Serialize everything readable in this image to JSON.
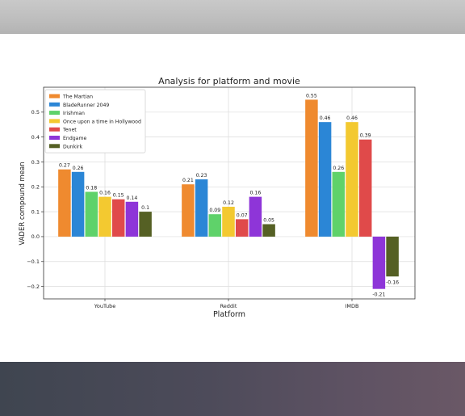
{
  "colors": {
    "The Martian": "#ef8a2f",
    "BladeRunner 2049": "#2b86d6",
    "Irishman": "#5fd26a",
    "Once upon a time in Hollywood": "#f3c930",
    "Tenet": "#e04a4a",
    "Endgame": "#8e35d8",
    "Dunkirk": "#556024"
  },
  "chart_data": {
    "type": "bar",
    "title": "Analysis for platform and movie",
    "xlabel": "Platform",
    "ylabel": "VADER compound mean",
    "categories": [
      "YouTube",
      "Reddit",
      "IMDB"
    ],
    "ylim": [
      -0.25,
      0.6
    ],
    "yticks": [
      -0.2,
      -0.1,
      0.0,
      0.1,
      0.2,
      0.3,
      0.4,
      0.5
    ],
    "ytick_labels": [
      "−0.2",
      "−0.1",
      "0.0",
      "0.1",
      "0.2",
      "0.3",
      "0.4",
      "0.5"
    ],
    "grid": true,
    "legend_position": "upper-left",
    "series": [
      {
        "name": "The Martian",
        "values": [
          0.27,
          0.21,
          0.55
        ],
        "labels": [
          "0.27",
          "0.21",
          "0.55"
        ]
      },
      {
        "name": "BladeRunner 2049",
        "values": [
          0.26,
          0.23,
          0.46
        ],
        "labels": [
          "0.26",
          "0.23",
          "0.46"
        ]
      },
      {
        "name": "Irishman",
        "values": [
          0.18,
          0.09,
          0.26
        ],
        "labels": [
          "0.18",
          "0.09",
          "0.26"
        ]
      },
      {
        "name": "Once upon a time in Hollywood",
        "values": [
          0.16,
          0.12,
          0.46
        ],
        "labels": [
          "0.16",
          "0.12",
          "0.46"
        ]
      },
      {
        "name": "Tenet",
        "values": [
          0.15,
          0.07,
          0.39
        ],
        "labels": [
          "0.15",
          "0.07",
          "0.39"
        ]
      },
      {
        "name": "Endgame",
        "values": [
          0.14,
          0.16,
          -0.21
        ],
        "labels": [
          "0.14",
          "0.16",
          "-0.21"
        ]
      },
      {
        "name": "Dunkirk",
        "values": [
          0.1,
          0.05,
          -0.16
        ],
        "labels": [
          "0.1",
          "0.05",
          "-0.16"
        ]
      }
    ]
  }
}
